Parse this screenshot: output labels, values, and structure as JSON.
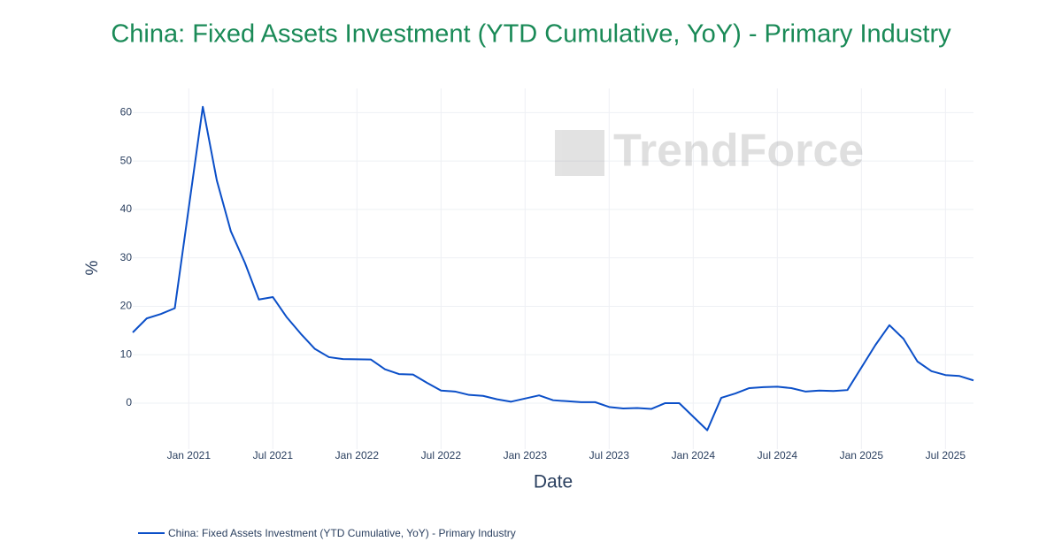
{
  "chart_data": {
    "type": "line",
    "title": "China: Fixed Assets Investment (YTD Cumulative, YoY) - Primary Industry",
    "watermark": "TrendForce",
    "x_label": "Date",
    "y_label": "%",
    "x": [
      "2020-09",
      "2020-10",
      "2020-11",
      "2020-12",
      "2021-02",
      "2021-03",
      "2021-04",
      "2021-05",
      "2021-06",
      "2021-07",
      "2021-08",
      "2021-09",
      "2021-10",
      "2021-11",
      "2021-12",
      "2022-02",
      "2022-03",
      "2022-04",
      "2022-05",
      "2022-06",
      "2022-07",
      "2022-08",
      "2022-09",
      "2022-10",
      "2022-11",
      "2022-12",
      "2023-02",
      "2023-03",
      "2023-04",
      "2023-05",
      "2023-06",
      "2023-07",
      "2023-08",
      "2023-09",
      "2023-10",
      "2023-11",
      "2023-12",
      "2024-02",
      "2024-03",
      "2024-04",
      "2024-05",
      "2024-06",
      "2024-07",
      "2024-08",
      "2024-09",
      "2024-10",
      "2024-11",
      "2024-12",
      "2025-02",
      "2025-03",
      "2025-04",
      "2025-05",
      "2025-06",
      "2025-07",
      "2025-08",
      "2025-09"
    ],
    "series": [
      {
        "name": "China: Fixed Assets Investment (YTD Cumulative, YoY) - Primary Industry",
        "color": "#0b4fc8",
        "values": [
          14.6,
          17.5,
          18.4,
          19.6,
          61.2,
          46,
          35.5,
          29,
          21.4,
          21.9,
          17.7,
          14.3,
          11.2,
          9.5,
          9.1,
          9.0,
          7,
          6,
          5.9,
          4.2,
          2.6,
          2.4,
          1.7,
          1.5,
          0.8,
          0.3,
          1.6,
          0.6,
          0.4,
          0.2,
          0.2,
          -0.8,
          -1.1,
          -1,
          -1.2,
          0,
          0,
          -5.6,
          1.1,
          2.0,
          3.1,
          3.3,
          3.4,
          3.1,
          2.4,
          2.6,
          2.5,
          2.7,
          12,
          16.1,
          13.3,
          8.6,
          6.6,
          5.8,
          5.6,
          4.7
        ]
      }
    ],
    "xlim": [
      "2020-09",
      "2025-09"
    ],
    "xticks": [
      {
        "value": "2021-01",
        "label": "Jan 2021"
      },
      {
        "value": "2021-07",
        "label": "Jul 2021"
      },
      {
        "value": "2022-01",
        "label": "Jan 2022"
      },
      {
        "value": "2022-07",
        "label": "Jul 2022"
      },
      {
        "value": "2023-01",
        "label": "Jan 2023"
      },
      {
        "value": "2023-07",
        "label": "Jul 2023"
      },
      {
        "value": "2024-01",
        "label": "Jan 2024"
      },
      {
        "value": "2024-07",
        "label": "Jul 2024"
      },
      {
        "value": "2025-01",
        "label": "Jan 2025"
      },
      {
        "value": "2025-07",
        "label": "Jul 2025"
      }
    ],
    "ylim": [
      -9.5,
      65
    ],
    "yticks": [
      0,
      10,
      20,
      30,
      40,
      50,
      60
    ],
    "grid": true
  }
}
